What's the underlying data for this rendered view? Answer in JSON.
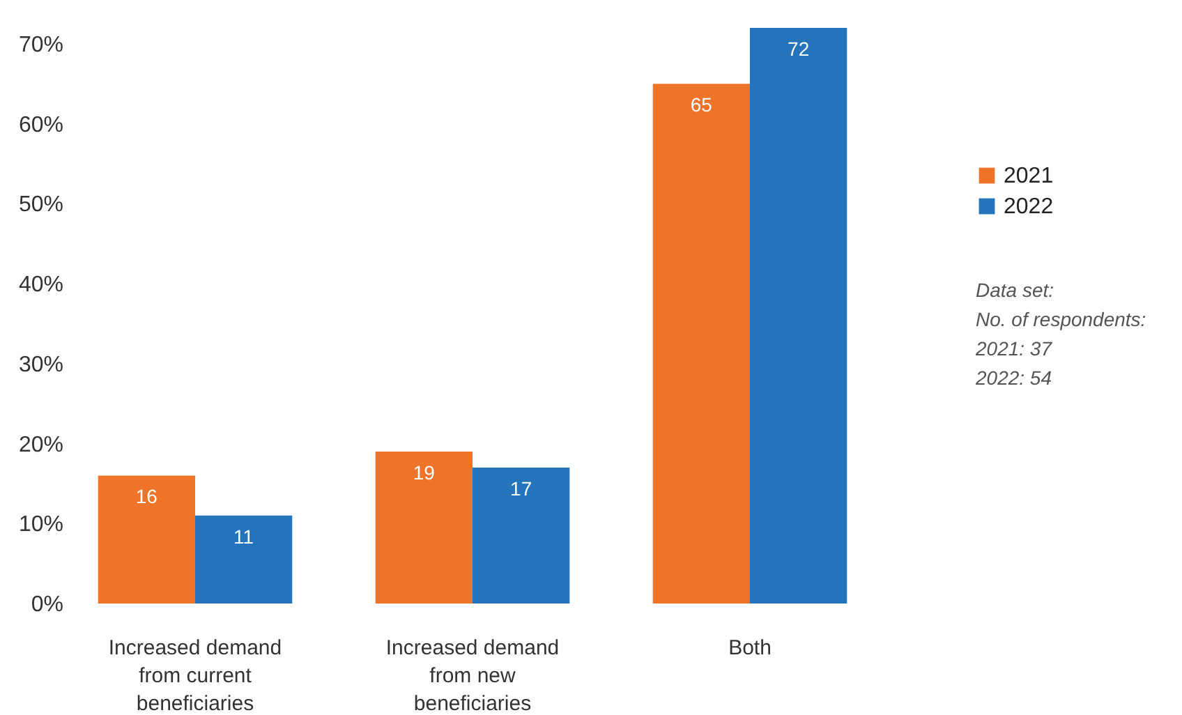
{
  "chart_data": {
    "type": "bar",
    "categories": [
      "Increased demand from current beneficiaries",
      "Increased demand from new beneficiaries",
      "Both"
    ],
    "series": [
      {
        "name": "2021",
        "color": "#ee7429",
        "values": [
          16,
          19,
          65
        ]
      },
      {
        "name": "2022",
        "color": "#2475bc",
        "values": [
          11,
          17,
          72
        ]
      }
    ],
    "ylim": [
      0,
      72
    ],
    "yticks": [
      {
        "value": 0,
        "label": "0%"
      },
      {
        "value": 10,
        "label": "10%"
      },
      {
        "value": 20,
        "label": "20%"
      },
      {
        "value": 30,
        "label": "30%"
      },
      {
        "value": 40,
        "label": "40%"
      },
      {
        "value": 50,
        "label": "50%"
      },
      {
        "value": 60,
        "label": "60%"
      },
      {
        "value": 70,
        "label": "70%"
      }
    ],
    "data_labels": true,
    "grid": false,
    "legend": "right",
    "annotations": [
      "Data set:\nNo. of respondents:\n2021: 37\n2022: 54"
    ]
  }
}
